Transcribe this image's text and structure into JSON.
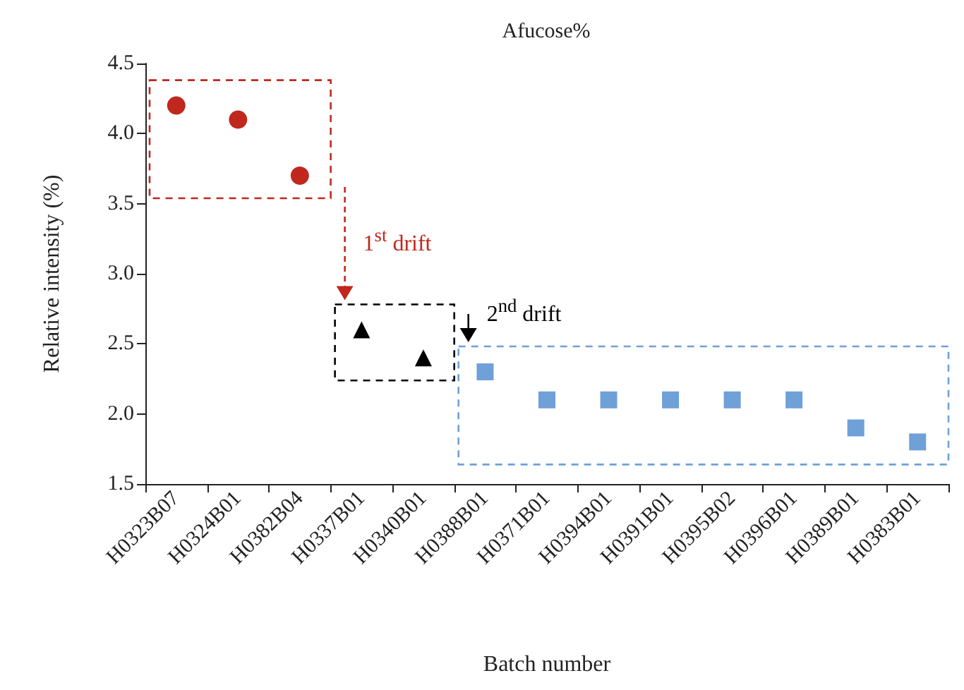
{
  "chart_data": {
    "type": "scatter",
    "title": "Afucose%",
    "xlabel": "Batch number",
    "ylabel": "Relative intensity (%)",
    "categories": [
      "H0323B07",
      "H0324B01",
      "H0382B04",
      "H0337B01",
      "H0340B01",
      "H0388B01",
      "H0371B01",
      "H0394B01",
      "H0391B01",
      "H0395B02",
      "H0396B01",
      "H0389B01",
      "H0383B01"
    ],
    "series": [
      {
        "color": "#c0281e",
        "marker": "circle",
        "values": [
          4.2,
          4.1,
          3.7,
          null,
          null,
          null,
          null,
          null,
          null,
          null,
          null,
          null,
          null
        ]
      },
      {
        "color": "#000000",
        "marker": "triangle",
        "values": [
          null,
          null,
          null,
          2.6,
          2.4,
          null,
          null,
          null,
          null,
          null,
          null,
          null,
          null
        ]
      },
      {
        "color": "#6fa0d8",
        "marker": "square",
        "values": [
          null,
          null,
          null,
          null,
          null,
          2.3,
          2.1,
          2.1,
          2.1,
          2.1,
          2.1,
          1.9,
          1.8
        ]
      }
    ],
    "ylim": [
      1.5,
      4.5
    ],
    "yticks": [
      {
        "value": 1.5,
        "label": "1.5"
      },
      {
        "value": 2,
        "label": "2.0"
      },
      {
        "value": 2.5,
        "label": "2.5"
      },
      {
        "value": 3,
        "label": "3.0"
      },
      {
        "value": 3.5,
        "label": "3.5"
      },
      {
        "value": 4,
        "label": "4.0"
      },
      {
        "value": 4.5,
        "label": "4.5"
      }
    ],
    "annotations": [
      "1$^{st}$ drift",
      "2$^{nd}$ drift"
    ],
    "grid": false
  }
}
